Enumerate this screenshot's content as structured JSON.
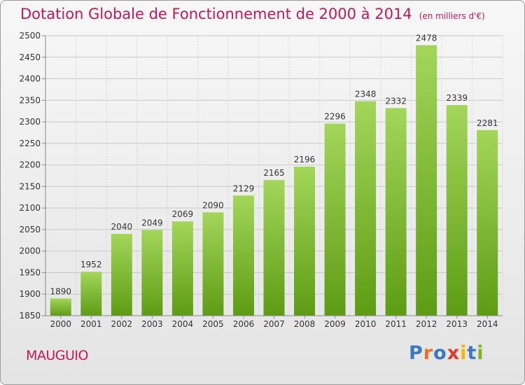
{
  "header": {
    "title": "Dotation Globale de Fonctionnement de 2000 à 2014",
    "unit": "(en milliers d'€)"
  },
  "footer": {
    "commune": "MAUGUIO",
    "logo": "Proxiti"
  },
  "colors": {
    "accent": "#c2185b",
    "bar_top": "#a3d65a",
    "bar_bottom": "#5e9c14"
  },
  "chart_data": {
    "type": "bar",
    "title": "Dotation Globale de Fonctionnement de 2000 à 2014",
    "subtitle": "(en milliers d'€)",
    "xlabel": "",
    "ylabel": "",
    "categories": [
      "2000",
      "2001",
      "2002",
      "2003",
      "2004",
      "2005",
      "2006",
      "2007",
      "2008",
      "2009",
      "2010",
      "2011",
      "2012",
      "2013",
      "2014"
    ],
    "values": [
      1890,
      1952,
      2040,
      2049,
      2069,
      2090,
      2129,
      2165,
      2196,
      2296,
      2348,
      2332,
      2478,
      2339,
      2281
    ],
    "ylim": [
      1850,
      2500
    ],
    "yticks": [
      1850,
      1900,
      1950,
      2000,
      2050,
      2100,
      2150,
      2200,
      2250,
      2300,
      2350,
      2400,
      2450,
      2500
    ],
    "grid": true,
    "legend": "none"
  }
}
